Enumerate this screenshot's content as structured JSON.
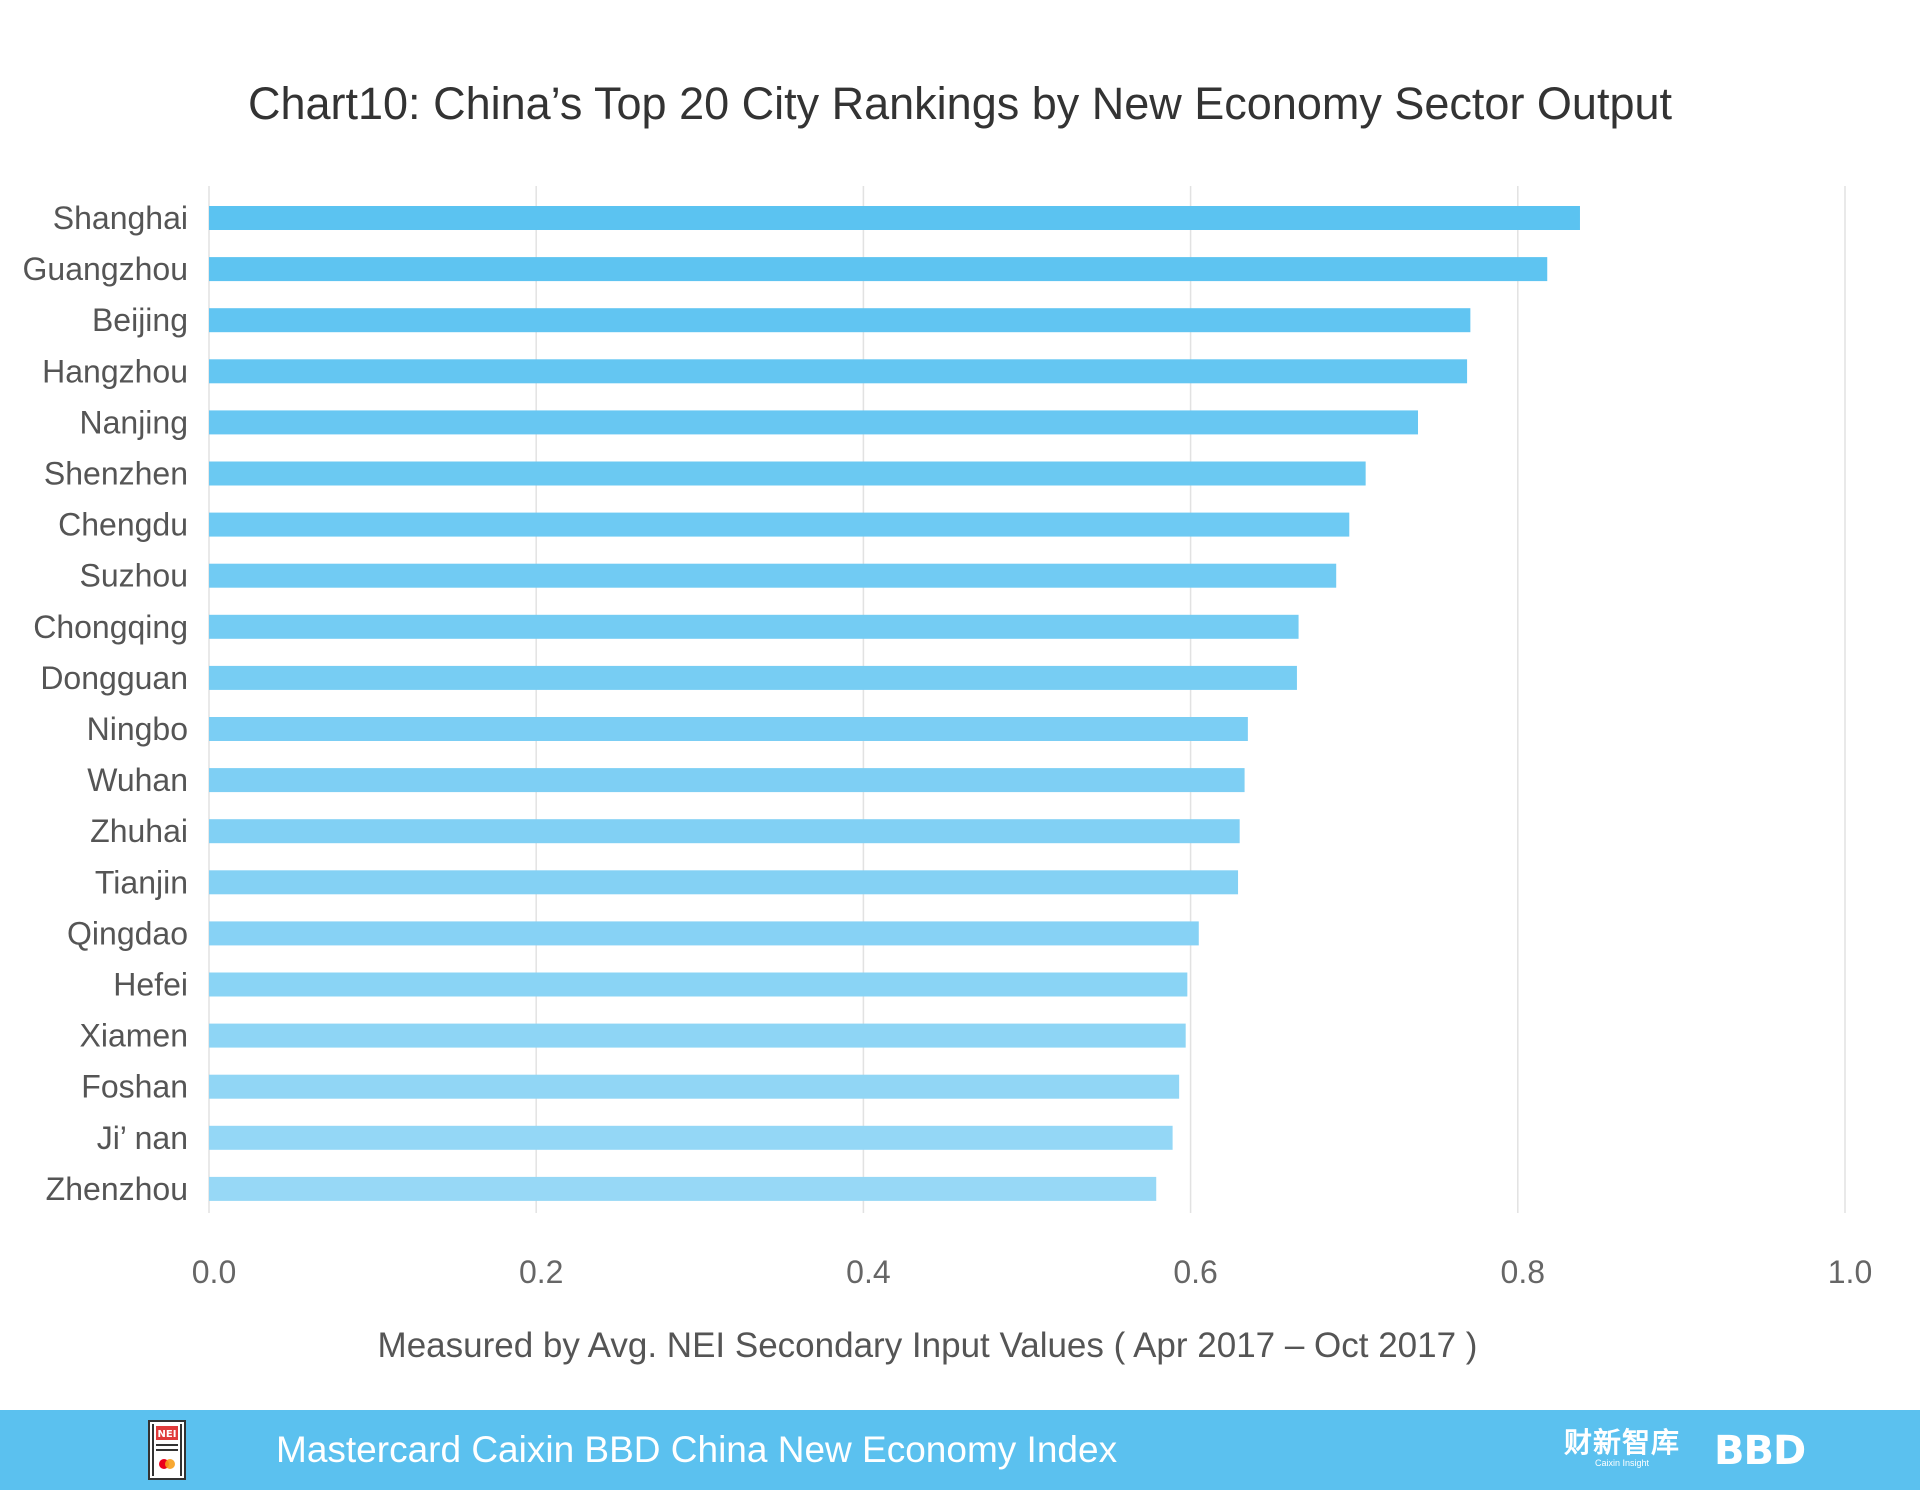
{
  "chart_data": {
    "type": "bar",
    "orientation": "horizontal",
    "title": "Chart10: China’s Top 20 City Rankings by New Economy Sector Output",
    "xlabel": "Measured by Avg. NEI Secondary Input Values ( Apr 2017 – Oct 2017 )",
    "ylabel": "",
    "categories": [
      "Shanghai",
      "Guangzhou",
      "Beijing",
      "Hangzhou",
      "Nanjing",
      "Shenzhen",
      "Chengdu",
      "Suzhou",
      "Chongqing",
      "Dongguan",
      "Ningbo",
      "Wuhan",
      "Zhuhai",
      "Tianjin",
      "Qingdao",
      "Hefei",
      "Xiamen",
      "Foshan",
      "Ji’ nan",
      "Zhenzhou"
    ],
    "values": [
      0.838,
      0.818,
      0.771,
      0.769,
      0.739,
      0.707,
      0.697,
      0.689,
      0.666,
      0.665,
      0.635,
      0.633,
      0.63,
      0.629,
      0.605,
      0.598,
      0.597,
      0.593,
      0.589,
      0.579
    ],
    "xlim": [
      0,
      1.0
    ],
    "xticks": [
      "0.0",
      "0.2",
      "0.4",
      "0.6",
      "0.8",
      "1.0"
    ],
    "grid": true,
    "colors": {
      "top": "#5bc3f1",
      "bottom": "#97d8f6",
      "grid": "#e2e2e2"
    }
  },
  "footer": {
    "title": "Mastercard Caixin BBD China New Economy Index",
    "logo_text": "NEI",
    "caixin_zh": "财新智库",
    "caixin_en": "Caixin Insight",
    "bbd": "BBD",
    "background": "#5bc1ef"
  }
}
